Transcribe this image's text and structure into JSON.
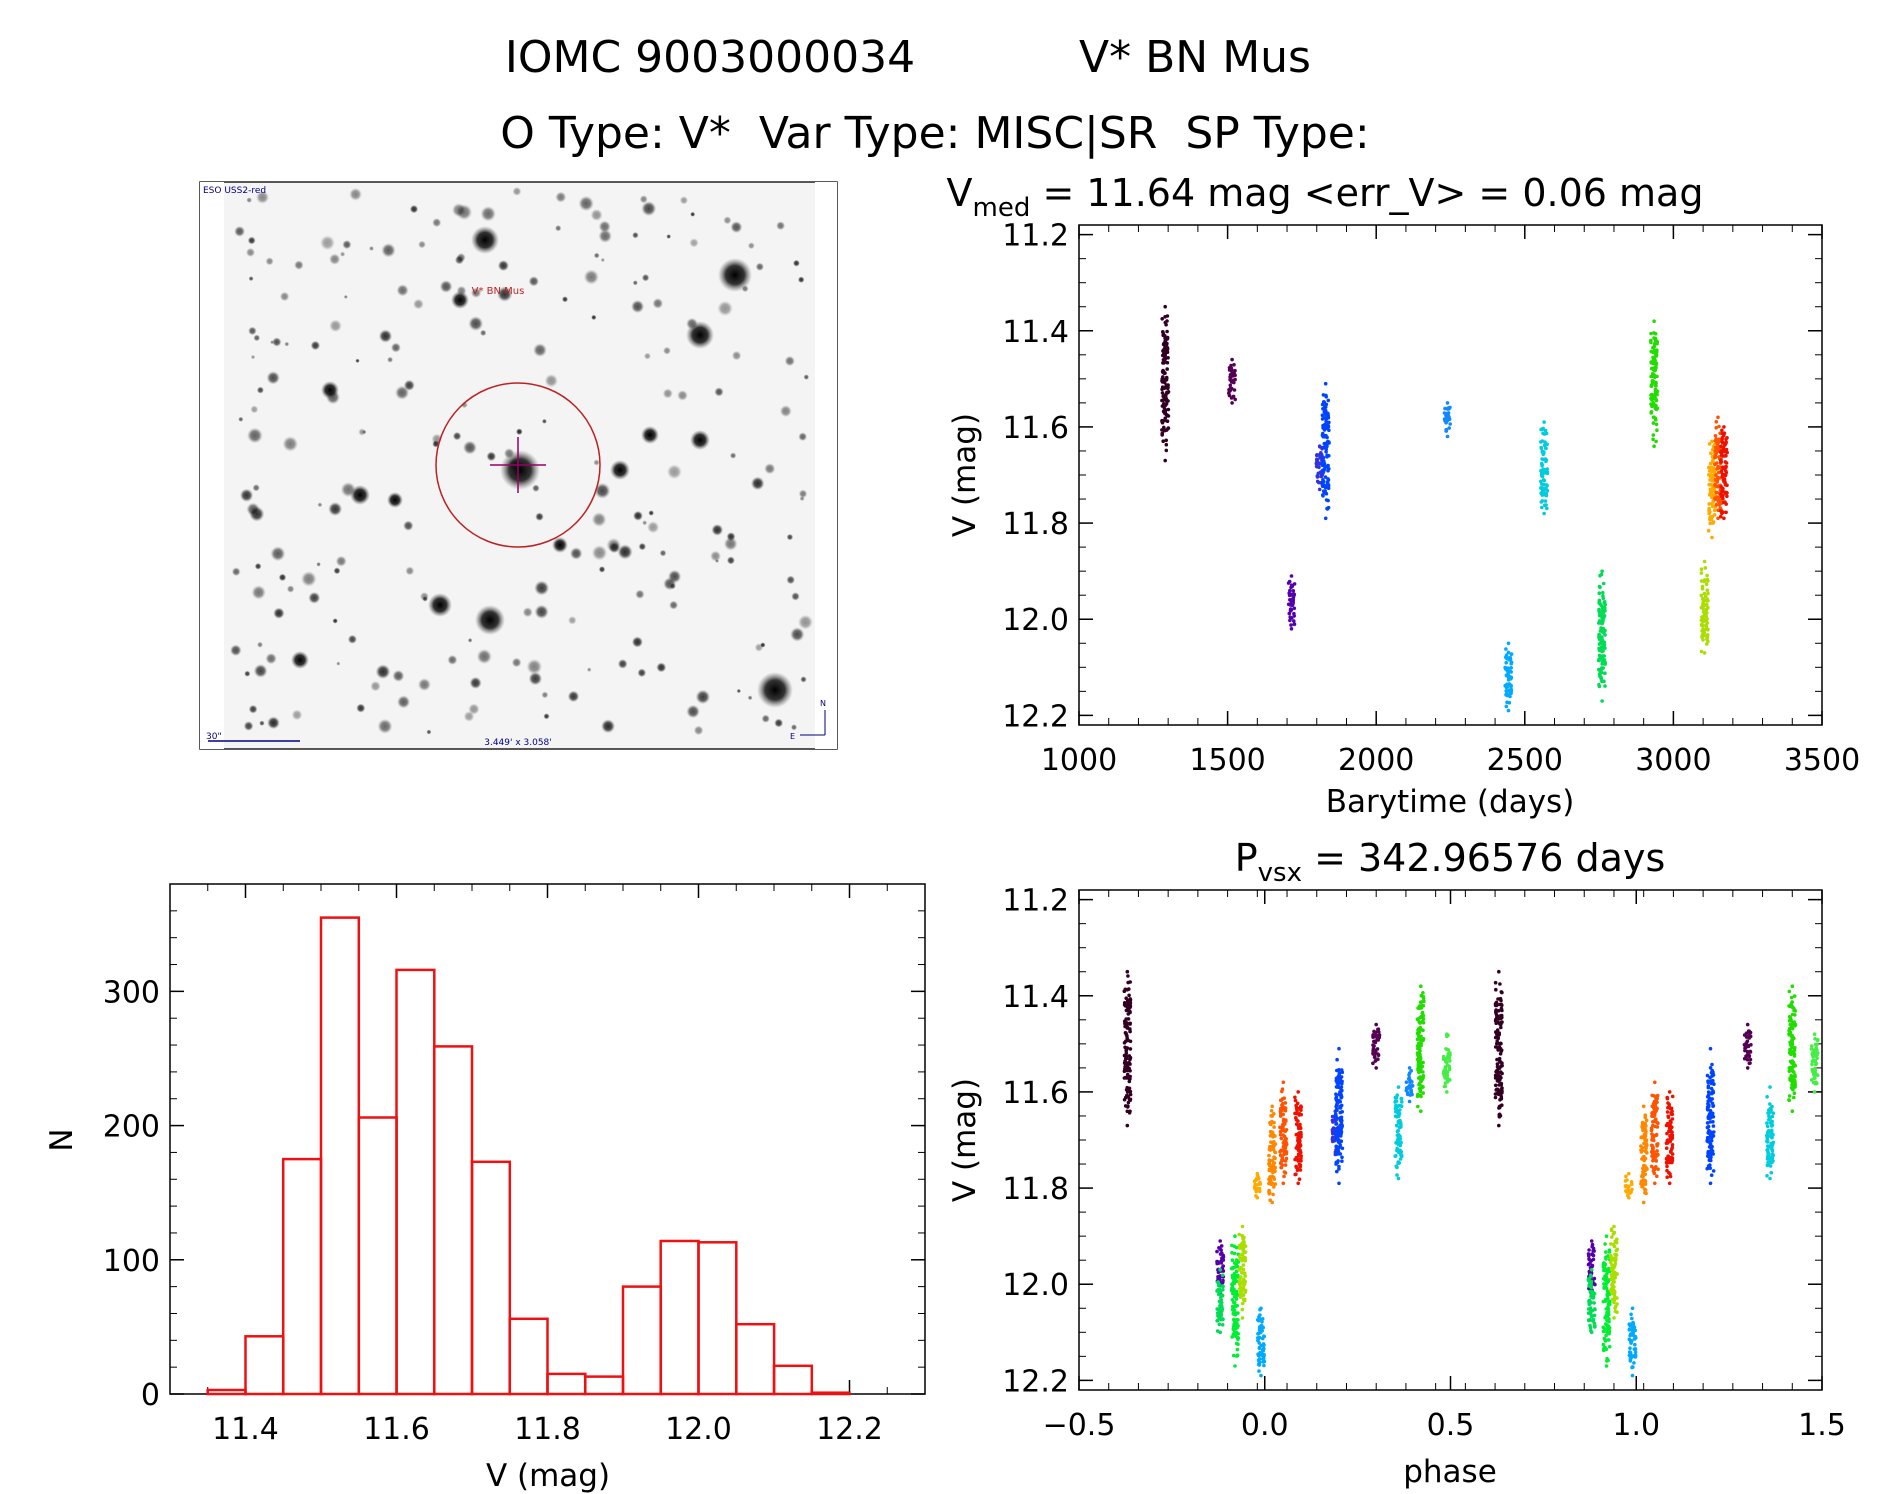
{
  "header": {
    "line1_id": "IOMC 9003000034",
    "line1_name": "V* BN Mus",
    "line2": "O Type: V*  Var Type: MISC|SR  SP Type:"
  },
  "colors": {
    "hist": "#ee1111",
    "axes": "#000000",
    "circle": "#bb2222",
    "cross": "#990066",
    "label_blue": "#000080"
  },
  "finder": {
    "survey_label": "ESO USS2-red",
    "object_label": "V* BN Mus",
    "scale_label": "30\"",
    "field_label": "3.449' x 3.058'",
    "compass_n": "N",
    "compass_e": "E"
  },
  "chart_data": [
    {
      "id": "lightcurve",
      "type": "scatter",
      "title_main": "V",
      "title_sub": "med",
      "title_rest": " = 11.64 mag <err_V> = 0.06 mag",
      "xlabel": "Barytime (days)",
      "ylabel": "V (mag)",
      "xlim": [
        1000,
        3500
      ],
      "ylim": [
        12.22,
        11.18
      ],
      "xticks": [
        "1000",
        "1500",
        "2000",
        "2500",
        "3000",
        "3500"
      ],
      "yticks": [
        "11.2",
        "11.4",
        "11.6",
        "11.8",
        "12.0",
        "12.2"
      ],
      "clusters": [
        {
          "x": 1290,
          "y_min": 11.35,
          "y_max": 11.67,
          "color": "#330022"
        },
        {
          "x": 1515,
          "y_min": 11.46,
          "y_max": 11.55,
          "color": "#550055"
        },
        {
          "x": 1715,
          "y_min": 11.91,
          "y_max": 12.02,
          "color": "#5500aa"
        },
        {
          "x": 1810,
          "y_min": 11.64,
          "y_max": 11.73,
          "color": "#3333dd"
        },
        {
          "x": 1830,
          "y_min": 11.51,
          "y_max": 11.79,
          "color": "#0044ff"
        },
        {
          "x": 2240,
          "y_min": 11.55,
          "y_max": 11.62,
          "color": "#1188ff"
        },
        {
          "x": 2445,
          "y_min": 12.05,
          "y_max": 12.19,
          "color": "#00aaff"
        },
        {
          "x": 2565,
          "y_min": 11.59,
          "y_max": 11.78,
          "color": "#00ccdd"
        },
        {
          "x": 2760,
          "y_min": 11.9,
          "y_max": 12.17,
          "color": "#00dd55"
        },
        {
          "x": 2935,
          "y_min": 11.38,
          "y_max": 11.64,
          "color": "#22dd00"
        },
        {
          "x": 3105,
          "y_min": 11.88,
          "y_max": 12.07,
          "color": "#aadd00"
        },
        {
          "x": 3130,
          "y_min": 11.63,
          "y_max": 11.83,
          "color": "#ffaa00"
        },
        {
          "x": 3150,
          "y_min": 11.58,
          "y_max": 11.79,
          "color": "#ff5500"
        },
        {
          "x": 3170,
          "y_min": 11.6,
          "y_max": 11.79,
          "color": "#ee1100"
        }
      ]
    },
    {
      "id": "phased",
      "type": "scatter",
      "title_main": "P",
      "title_sub": "vsx",
      "title_rest": " = 342.96576 days",
      "xlabel": "phase",
      "ylabel": "V (mag)",
      "xlim": [
        -0.5,
        1.5
      ],
      "ylim": [
        12.22,
        11.18
      ],
      "xticks": [
        "−0.5",
        "0.0",
        "0.5",
        "1.0",
        "1.5"
      ],
      "yticks": [
        "11.2",
        "11.4",
        "11.6",
        "11.8",
        "12.0",
        "12.2"
      ],
      "clusters": [
        {
          "x": -0.37,
          "y_min": 11.35,
          "y_max": 11.67,
          "color": "#330022"
        },
        {
          "x": 0.3,
          "y_min": 11.46,
          "y_max": 11.55,
          "color": "#550055"
        },
        {
          "x": -0.12,
          "y_min": 11.91,
          "y_max": 12.02,
          "color": "#5500aa"
        },
        {
          "x": 0.19,
          "y_min": 11.64,
          "y_max": 11.73,
          "color": "#3333dd"
        },
        {
          "x": 0.2,
          "y_min": 11.51,
          "y_max": 11.79,
          "color": "#0044ff"
        },
        {
          "x": 0.39,
          "y_min": 11.55,
          "y_max": 11.62,
          "color": "#1188ff"
        },
        {
          "x": -0.01,
          "y_min": 12.05,
          "y_max": 12.19,
          "color": "#00aaff"
        },
        {
          "x": 0.36,
          "y_min": 11.59,
          "y_max": 11.78,
          "color": "#00ccdd"
        },
        {
          "x": -0.12,
          "y_min": 11.97,
          "y_max": 12.1,
          "color": "#00dd55"
        },
        {
          "x": -0.08,
          "y_min": 11.9,
          "y_max": 12.17,
          "color": "#00ee33"
        },
        {
          "x": 0.42,
          "y_min": 11.38,
          "y_max": 11.64,
          "color": "#22dd00"
        },
        {
          "x": 0.49,
          "y_min": 11.48,
          "y_max": 11.6,
          "color": "#44ee44"
        },
        {
          "x": -0.06,
          "y_min": 11.88,
          "y_max": 12.07,
          "color": "#aadd00"
        },
        {
          "x": -0.02,
          "y_min": 11.77,
          "y_max": 11.82,
          "color": "#ffaa00"
        },
        {
          "x": 0.02,
          "y_min": 11.63,
          "y_max": 11.83,
          "color": "#ff8800"
        },
        {
          "x": 0.05,
          "y_min": 11.58,
          "y_max": 11.79,
          "color": "#ff5500"
        },
        {
          "x": 0.09,
          "y_min": 11.6,
          "y_max": 11.79,
          "color": "#ee1100"
        },
        {
          "x": 0.63,
          "y_min": 11.35,
          "y_max": 11.67,
          "color": "#330022"
        },
        {
          "x": 1.3,
          "y_min": 11.46,
          "y_max": 11.55,
          "color": "#550055"
        },
        {
          "x": 0.88,
          "y_min": 11.91,
          "y_max": 12.02,
          "color": "#5500aa"
        },
        {
          "x": 1.2,
          "y_min": 11.51,
          "y_max": 11.79,
          "color": "#0044ff"
        },
        {
          "x": 0.99,
          "y_min": 12.05,
          "y_max": 12.19,
          "color": "#00aaff"
        },
        {
          "x": 1.36,
          "y_min": 11.59,
          "y_max": 11.78,
          "color": "#00ccdd"
        },
        {
          "x": 0.88,
          "y_min": 11.97,
          "y_max": 12.1,
          "color": "#00dd55"
        },
        {
          "x": 0.92,
          "y_min": 11.9,
          "y_max": 12.17,
          "color": "#00ee33"
        },
        {
          "x": 1.42,
          "y_min": 11.38,
          "y_max": 11.64,
          "color": "#22dd00"
        },
        {
          "x": 1.48,
          "y_min": 11.48,
          "y_max": 11.6,
          "color": "#44ee44"
        },
        {
          "x": 0.94,
          "y_min": 11.88,
          "y_max": 12.07,
          "color": "#aadd00"
        },
        {
          "x": 0.98,
          "y_min": 11.77,
          "y_max": 11.82,
          "color": "#ffaa00"
        },
        {
          "x": 1.02,
          "y_min": 11.63,
          "y_max": 11.83,
          "color": "#ff8800"
        },
        {
          "x": 1.05,
          "y_min": 11.58,
          "y_max": 11.79,
          "color": "#ff5500"
        },
        {
          "x": 1.09,
          "y_min": 11.6,
          "y_max": 11.79,
          "color": "#ee1100"
        }
      ]
    },
    {
      "id": "histogram",
      "type": "bar",
      "title": "",
      "xlabel": "V (mag)",
      "ylabel": "N",
      "xlim": [
        11.3,
        12.3
      ],
      "ylim": [
        0,
        380
      ],
      "xticks": [
        "11.4",
        "11.6",
        "11.8",
        "12.0",
        "12.2"
      ],
      "yticks": [
        "0",
        "100",
        "200",
        "300"
      ],
      "bin_width": 0.05,
      "bin_edges_start": [
        11.35,
        11.4,
        11.45,
        11.5,
        11.55,
        11.6,
        11.65,
        11.7,
        11.75,
        11.8,
        11.85,
        11.9,
        11.95,
        12.0,
        12.05,
        12.1,
        12.15
      ],
      "values": [
        3,
        43,
        175,
        355,
        206,
        316,
        259,
        173,
        56,
        15,
        13,
        80,
        114,
        113,
        52,
        21,
        1
      ]
    }
  ]
}
